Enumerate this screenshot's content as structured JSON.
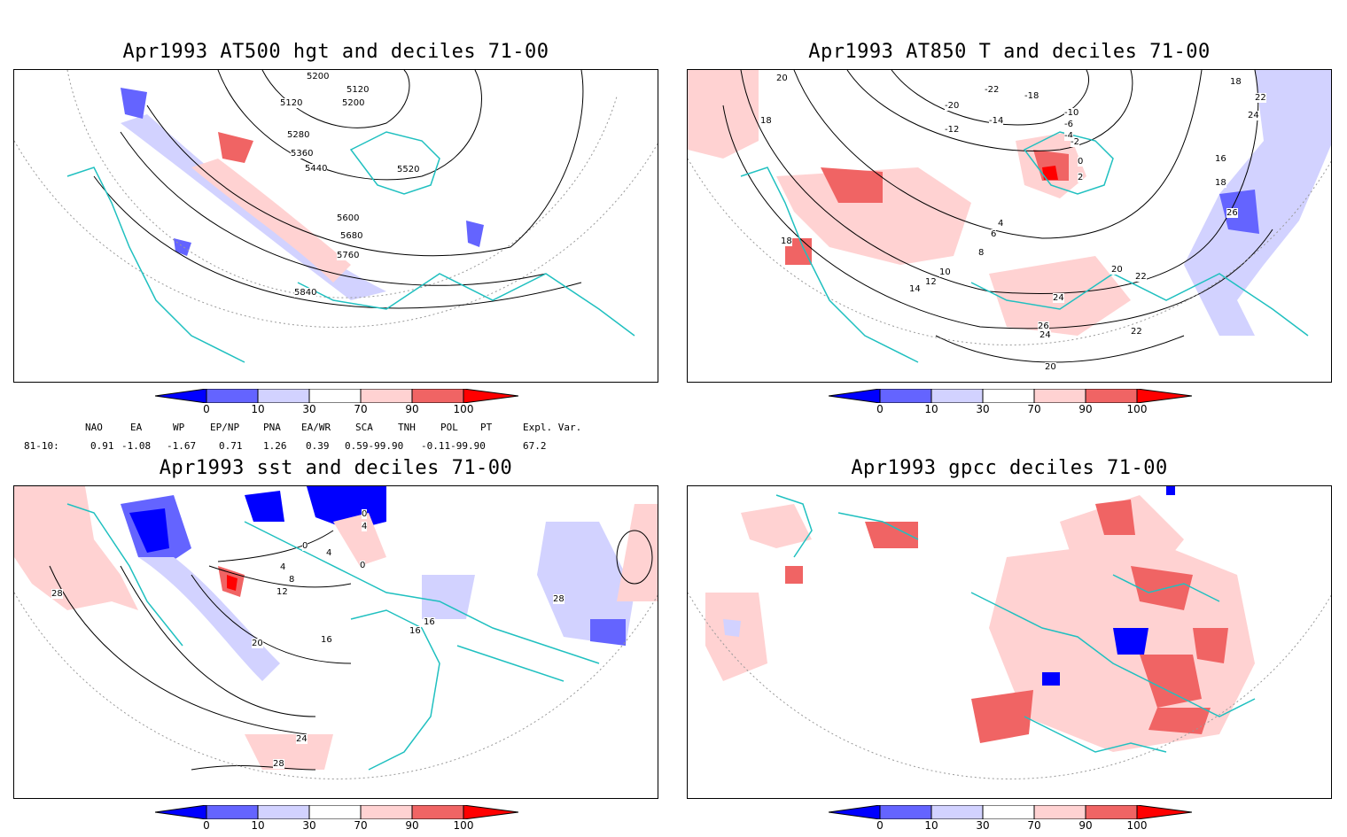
{
  "panels": [
    {
      "title": "Apr1993 AT500 hgt and deciles 71-00",
      "contour_labels": [
        "5200",
        "5120",
        "5120",
        "5200",
        "5280",
        "5360",
        "5440",
        "5520",
        "5600",
        "5680",
        "5760",
        "5840"
      ]
    },
    {
      "title": "Apr1993 AT850 T and deciles 71-00",
      "contour_labels": [
        "20",
        "18",
        "18",
        "-22",
        "-20",
        "-18",
        "-14",
        "-12",
        "-10",
        "-6",
        "-4",
        "-2",
        "0",
        "2",
        "4",
        "6",
        "8",
        "10",
        "12",
        "14",
        "16",
        "18",
        "20",
        "22",
        "24",
        "26",
        "24",
        "22",
        "20",
        "18",
        "22",
        "24",
        "26"
      ]
    },
    {
      "title": "Apr1993 sst and deciles 71-00",
      "contour_labels": [
        "28",
        "0",
        "4",
        "8",
        "12",
        "16",
        "20",
        "24",
        "28",
        "0",
        "4",
        "16",
        "16",
        "28",
        "0",
        "4"
      ]
    },
    {
      "title": "Apr1993 gpcc deciles 71-00",
      "contour_labels": []
    }
  ],
  "colorbar": {
    "labels": [
      "0",
      "10",
      "30",
      "70",
      "90",
      "100"
    ],
    "colors": {
      "dark_blue": "#0000ff",
      "mid_blue": "#6464ff",
      "light_blue": "#d2d2ff",
      "white": "#ffffff",
      "light_red": "#ffd2d2",
      "mid_red": "#f06464",
      "dark_red": "#ff0000"
    }
  },
  "teleconnections": {
    "headers": [
      "NAO",
      "EA",
      "WP",
      "EP/NP",
      "PNA",
      "EA/WR",
      "SCA",
      "TNH",
      "POL",
      "PT",
      "Expl. Var."
    ],
    "row_label": "81-10:",
    "values": [
      "0.91",
      "-1.08",
      "-1.67",
      "0.71",
      "1.26",
      "0.39",
      "0.59-99.90",
      "-0.11-99.90",
      "67.2"
    ]
  },
  "colors": {
    "coast": "#20c0c0",
    "contour": "#000000",
    "grid": "#999999"
  }
}
